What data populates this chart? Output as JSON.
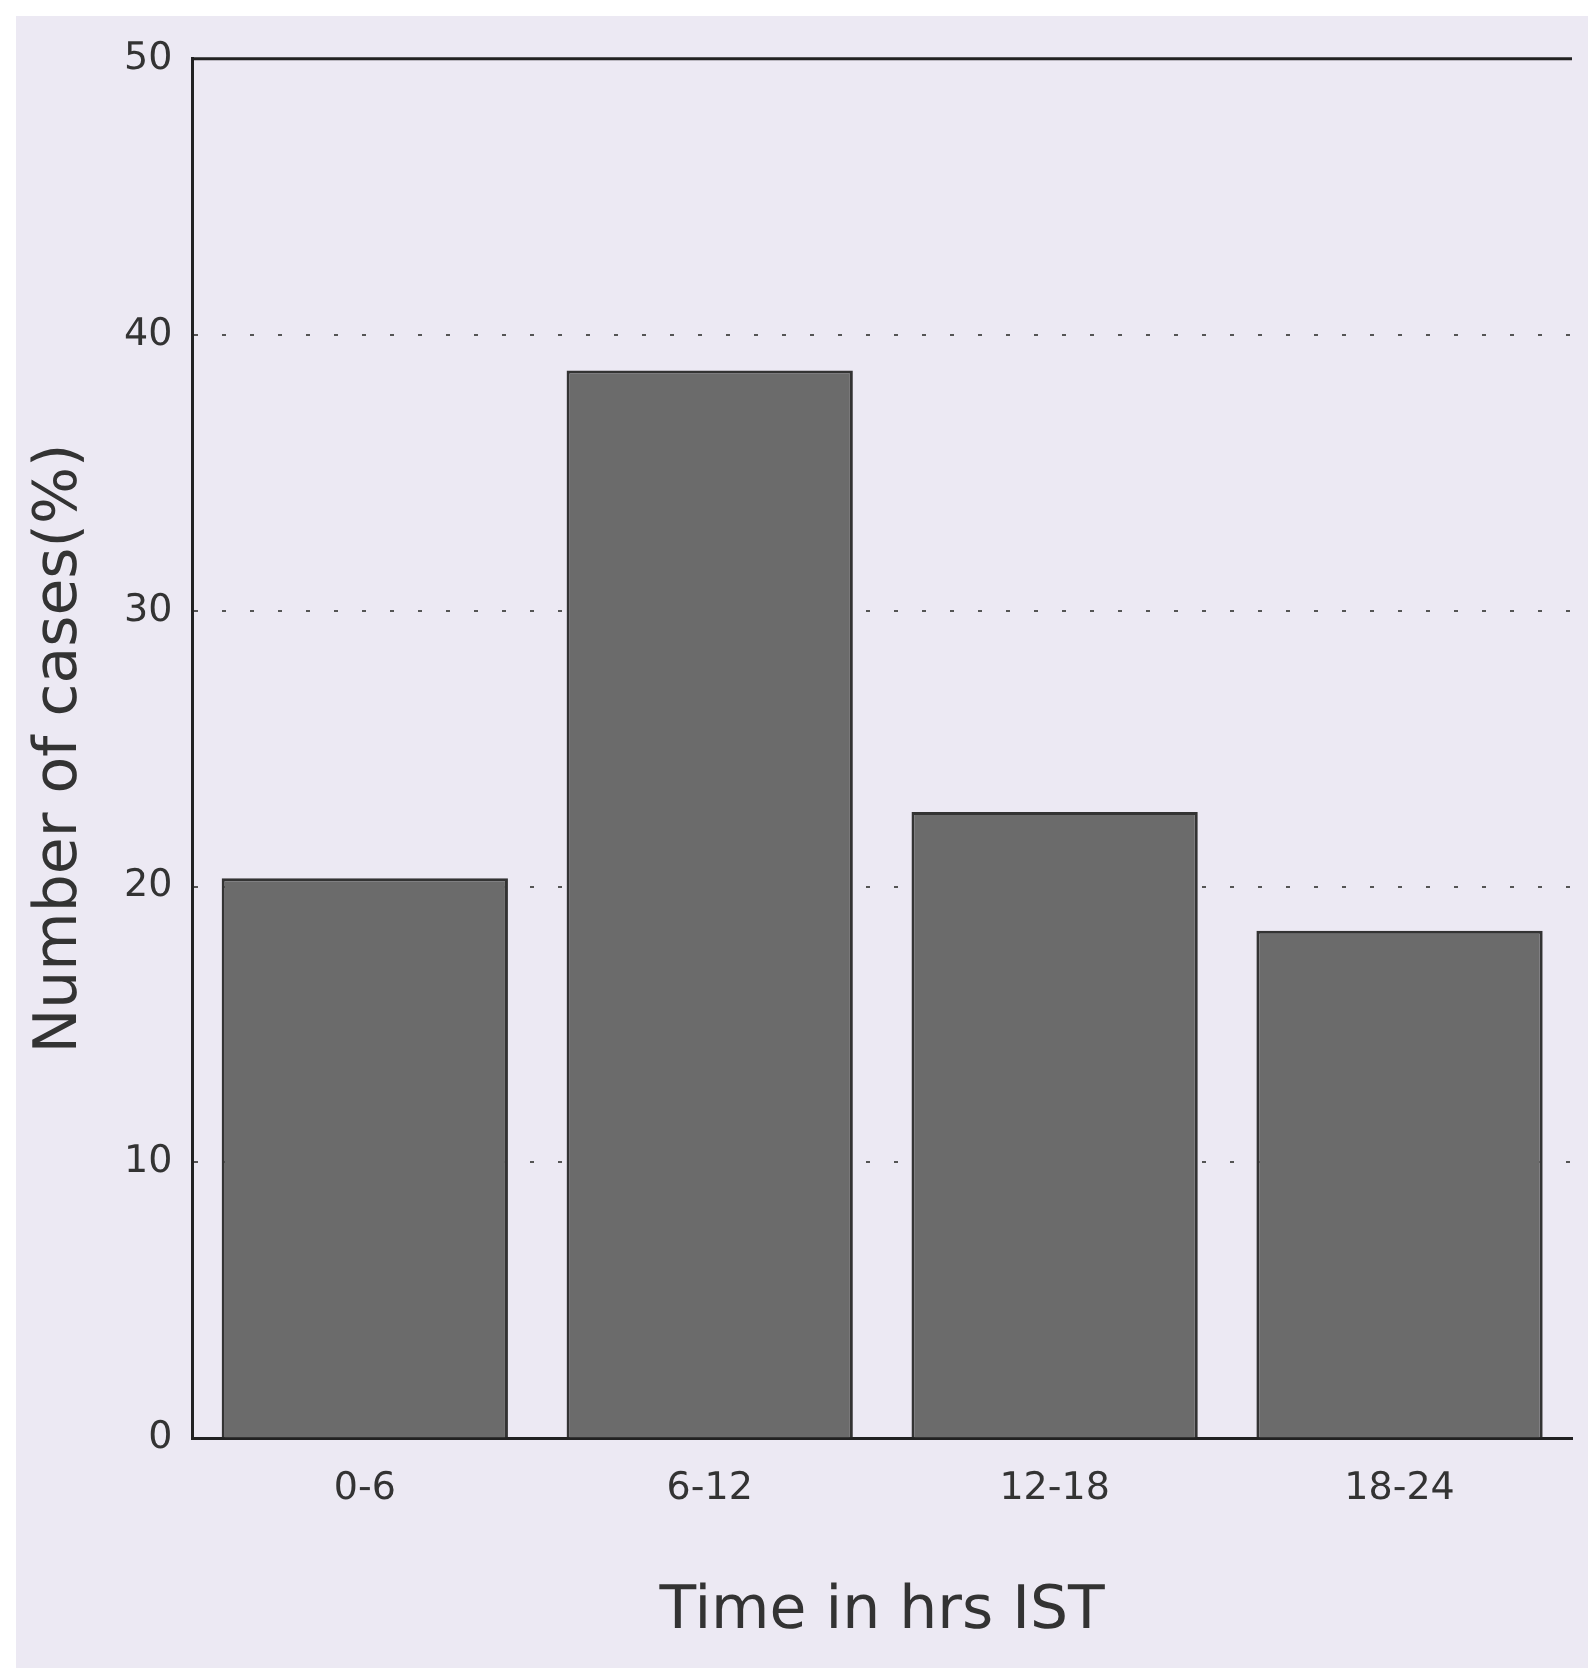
{
  "chart_data": {
    "type": "bar",
    "xlabel": "Time in hrs IST",
    "ylabel": "Number of cases(%)",
    "categories": [
      "0-6",
      "6-12",
      "12-18",
      "18-24"
    ],
    "values": [
      20.3,
      38.7,
      22.7,
      18.4
    ],
    "color": "#6b6b6b",
    "ylim": [
      0,
      50
    ],
    "yticks": [
      0,
      10,
      20,
      30,
      40,
      50
    ],
    "grid": "y"
  }
}
